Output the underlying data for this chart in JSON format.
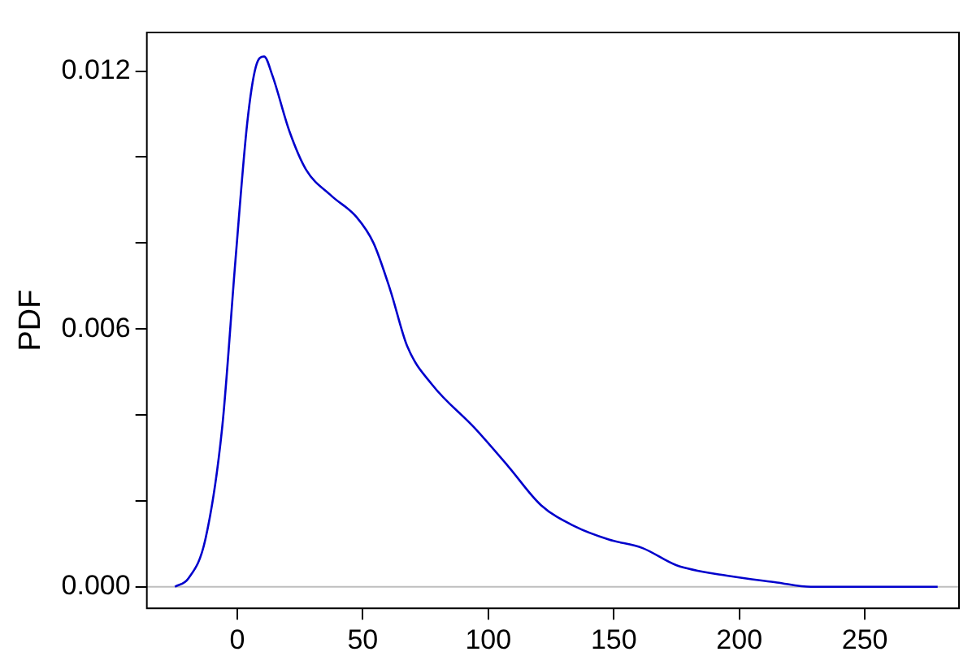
{
  "chart_data": {
    "type": "line",
    "ylabel": "PDF",
    "series": [
      {
        "color": "#0000cc",
        "x": [
          -24.8,
          -19.4,
          -12.7,
          -6,
          -0.7,
          4,
          7.4,
          10.7,
          14,
          20.8,
          27.5,
          37.5,
          47.6,
          54.3,
          61,
          67.7,
          77.7,
          94.5,
          108,
          121,
          134.7,
          148,
          161.5,
          175,
          195,
          215,
          228.5,
          248.7,
          279
        ],
        "values": [
          0,
          0.0002,
          0.0011,
          0.0037,
          0.0076,
          0.0108,
          0.0121,
          0.01234,
          0.0119,
          0.0106,
          0.0097,
          0.0091,
          0.0086,
          0.008,
          0.0069,
          0.0056,
          0.0047,
          0.0037,
          0.0028,
          0.0019,
          0.0014,
          0.0011,
          0.0009,
          0.0005,
          0.00026,
          0.0001,
          0,
          0,
          0
        ]
      }
    ],
    "xlim": [
      -36,
      287.5
    ],
    "ylim": [
      -0.0005,
      0.0129
    ],
    "xticks": [
      0,
      50,
      100,
      150,
      200,
      250
    ],
    "yticks": [
      {
        "value": 0,
        "label": "0.000"
      },
      {
        "value": 0.002,
        "label": null
      },
      {
        "value": 0.004,
        "label": null
      },
      {
        "value": 0.006,
        "label": "0.006"
      },
      {
        "value": 0.008,
        "label": null
      },
      {
        "value": 0.01,
        "label": null
      },
      {
        "value": 0.012,
        "label": "0.012"
      }
    ],
    "ref_lines": [
      {
        "axis": "y",
        "value": 0,
        "color": "#bebebe"
      }
    ],
    "grid": false,
    "legend": false,
    "marker": "none",
    "line_style": "solid"
  }
}
